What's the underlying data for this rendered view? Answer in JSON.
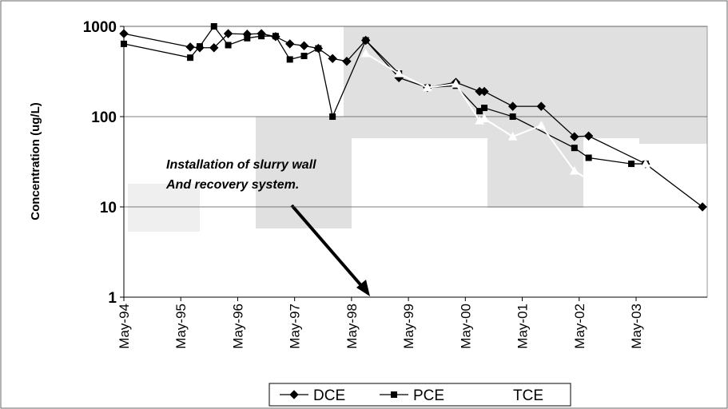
{
  "chart_data": {
    "type": "line",
    "ylabel": "Concentration (ug/L)",
    "log_y": true,
    "grid": true,
    "ylim": [
      1,
      1000
    ],
    "yticks": [
      1,
      10,
      100,
      1000
    ],
    "xlim": [
      "1994-05",
      "2004-08"
    ],
    "xticks": [
      {
        "value": "1994-05",
        "label": "May-94"
      },
      {
        "value": "1995-05",
        "label": "May-95"
      },
      {
        "value": "1996-05",
        "label": "May-96"
      },
      {
        "value": "1997-05",
        "label": "May-97"
      },
      {
        "value": "1998-05",
        "label": "May-98"
      },
      {
        "value": "1999-05",
        "label": "May-99"
      },
      {
        "value": "2000-05",
        "label": "May-00"
      },
      {
        "value": "2001-05",
        "label": "May-01"
      },
      {
        "value": "2002-05",
        "label": "May-02"
      },
      {
        "value": "2003-05",
        "label": "May-03"
      }
    ],
    "annotation": [
      "Installation of slurry wall",
      "And recovery system."
    ],
    "legend": "bottom",
    "series": [
      {
        "name": "DCE",
        "color": "#000000",
        "marker": "diamond",
        "x": [
          "1994-05",
          "1995-07",
          "1995-09",
          "1995-12",
          "1996-03",
          "1996-07",
          "1996-10",
          "1997-01",
          "1997-04",
          "1997-07",
          "1997-10",
          "1998-01",
          "1998-04",
          "1998-08",
          "1999-03",
          "1999-09",
          "2000-03",
          "2000-08",
          "2000-09",
          "2001-03",
          "2001-09",
          "2002-04",
          "2002-07",
          "2003-07",
          "2004-07"
        ],
        "values": [
          830,
          590,
          580,
          580,
          830,
          820,
          830,
          770,
          640,
          610,
          570,
          440,
          410,
          700,
          270,
          210,
          240,
          190,
          190,
          130,
          130,
          60,
          61,
          30,
          10
        ]
      },
      {
        "name": "PCE",
        "color": "#000000",
        "marker": "square",
        "x": [
          "1994-05",
          "1995-07",
          "1995-09",
          "1995-12",
          "1996-03",
          "1996-07",
          "1996-10",
          "1997-01",
          "1997-04",
          "1997-07",
          "1997-10",
          "1998-01",
          "1998-08",
          "1999-03",
          "1999-09",
          "2000-03",
          "2000-08",
          "2000-09",
          "2001-03",
          "2002-04",
          "2002-07",
          "2003-04",
          "2003-07"
        ],
        "values": [
          640,
          450,
          600,
          1000,
          620,
          740,
          780,
          780,
          430,
          470,
          570,
          100,
          700,
          300,
          210,
          220,
          115,
          125,
          100,
          45,
          35,
          30,
          30
        ]
      },
      {
        "name": "TCE",
        "color": "#ffffff",
        "marker": "triangle",
        "x": [
          "1998-08",
          "1999-03",
          "1999-09",
          "2000-03",
          "2000-08",
          "2000-09",
          "2001-03",
          "2001-09",
          "2002-04",
          "2002-07",
          "2003-04",
          "2003-07"
        ],
        "values": [
          500,
          300,
          210,
          230,
          90,
          95,
          60,
          80,
          25,
          20,
          17,
          30
        ]
      }
    ]
  }
}
